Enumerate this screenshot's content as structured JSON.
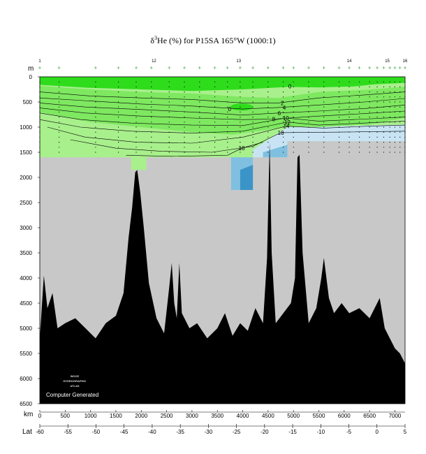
{
  "title_prefix": "δ",
  "title_sup": "3",
  "title_rest": "He (%) for P15SA 165°W (1000:1)",
  "watermark": {
    "line1": "WOCE",
    "line2": "HYDROGRAPHIC",
    "line3": "ATLAS",
    "caption": "Computer Generated"
  },
  "colors": {
    "green_light": "#a8f08c",
    "green_mid": "#7ee860",
    "green_bright": "#2edc1c",
    "blue_light": "#c8e4f4",
    "blue_mid": "#7fc0e0",
    "blue_dark": "#3a94c8",
    "gray_bg": "#c8c8c8",
    "bottom": "#000000"
  },
  "chart_data": {
    "type": "heatmap",
    "title": "δ3He (%) for P15SA 165°W (1000:1)",
    "y_axis_label": "m",
    "x_axis_label": "km",
    "lat_axis_label": "Lat",
    "depth_range": [
      0,
      6500
    ],
    "distance_range": [
      0,
      7200
    ],
    "depth_ticks": [
      0,
      500,
      1000,
      1500,
      2000,
      2500,
      3000,
      3500,
      4000,
      4500,
      5000,
      5500,
      6000,
      6500
    ],
    "distance_ticks": [
      0,
      500,
      1000,
      1500,
      2000,
      2500,
      3000,
      3500,
      4000,
      4500,
      5000,
      5500,
      6000,
      6500,
      7000
    ],
    "latitude_ticks": [
      -60,
      -55,
      -50,
      -45,
      -40,
      -35,
      -30,
      -25,
      -20,
      -15,
      -10,
      -5,
      0,
      5
    ],
    "latitude_range": [
      -60,
      5
    ],
    "station_markers": [
      {
        "km": 0,
        "label": "1"
      },
      {
        "km": 2250,
        "label": "12"
      },
      {
        "km": 3920,
        "label": "13"
      },
      {
        "km": 6100,
        "label": "14"
      },
      {
        "km": 6850,
        "label": "15"
      },
      {
        "km": 7200,
        "label": "16"
      }
    ],
    "station_km": [
      0,
      380,
      1100,
      1550,
      1900,
      2200,
      2550,
      2850,
      3150,
      3450,
      3700,
      3950,
      4200,
      4500,
      4800,
      5000,
      5300,
      5600,
      5900,
      6100,
      6300,
      6500,
      6650,
      6780,
      6900,
      7000,
      7100,
      7200
    ],
    "contour_labels": [
      {
        "value": "0",
        "km": 4930,
        "depth": 190
      },
      {
        "value": "0",
        "km": 3740,
        "depth": 640
      },
      {
        "value": "2",
        "km": 4780,
        "depth": 520
      },
      {
        "value": "4",
        "km": 4820,
        "depth": 610
      },
      {
        "value": "6",
        "km": 4720,
        "depth": 720
      },
      {
        "value": "8",
        "km": 4610,
        "depth": 840
      },
      {
        "value": "10",
        "km": 4850,
        "depth": 820
      },
      {
        "value": "12",
        "km": 4880,
        "depth": 900
      },
      {
        "value": "14",
        "km": 4860,
        "depth": 980
      },
      {
        "value": "16",
        "km": 4750,
        "depth": 1110
      },
      {
        "value": "18",
        "km": 3980,
        "depth": 1420
      }
    ],
    "levels": [
      0,
      2,
      4,
      6,
      8,
      10,
      12,
      14,
      16,
      18,
      20
    ]
  }
}
